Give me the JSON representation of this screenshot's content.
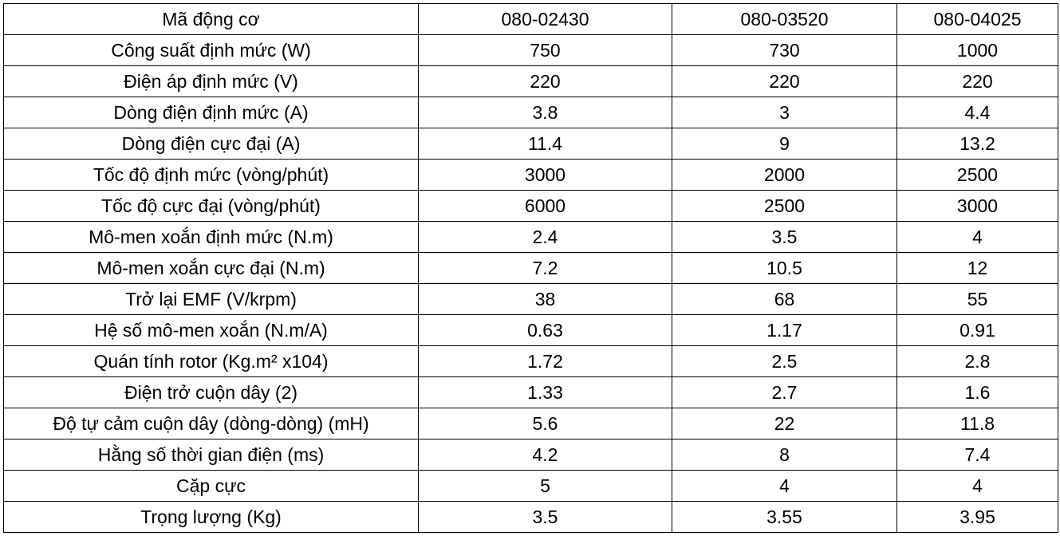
{
  "table": {
    "header": [
      "Mã động cơ",
      "080-02430",
      "080-03520",
      "080-04025"
    ],
    "rows": [
      [
        "Công suất định mức (W)",
        "750",
        "730",
        "1000"
      ],
      [
        "Điện áp định mức (V)",
        "220",
        "220",
        "220"
      ],
      [
        "Dòng điện định mức (A)",
        "3.8",
        "3",
        "4.4"
      ],
      [
        "Dòng điện cực đại (A)",
        "11.4",
        "9",
        "13.2"
      ],
      [
        "Tốc độ định mức (vòng/phút)",
        "3000",
        "2000",
        "2500"
      ],
      [
        "Tốc độ cực đại (vòng/phút)",
        "6000",
        "2500",
        "3000"
      ],
      [
        "Mô-men xoắn định mức (N.m)",
        "2.4",
        "3.5",
        "4"
      ],
      [
        "Mô-men xoắn cực đại (N.m)",
        "7.2",
        "10.5",
        "12"
      ],
      [
        "Trở lại EMF (V/krpm)",
        "38",
        "68",
        "55"
      ],
      [
        "Hệ số mô-men xoắn (N.m/A)",
        "0.63",
        "1.17",
        "0.91"
      ],
      [
        "Quán tính rotor (Kg.m² x104)",
        "1.72",
        "2.5",
        "2.8"
      ],
      [
        "Điện trở cuộn dây (2)",
        "1.33",
        "2.7",
        "1.6"
      ],
      [
        "Độ tự cảm cuộn dây (dòng-dòng) (mH)",
        "5.6",
        "22",
        "11.8"
      ],
      [
        "Hằng số thời gian điện (ms)",
        "4.2",
        "8",
        "7.4"
      ],
      [
        "Cặp cực",
        "5",
        "4",
        "4"
      ],
      [
        "Trọng lượng (Kg)",
        "3.5",
        "3.55",
        "3.95"
      ]
    ]
  }
}
